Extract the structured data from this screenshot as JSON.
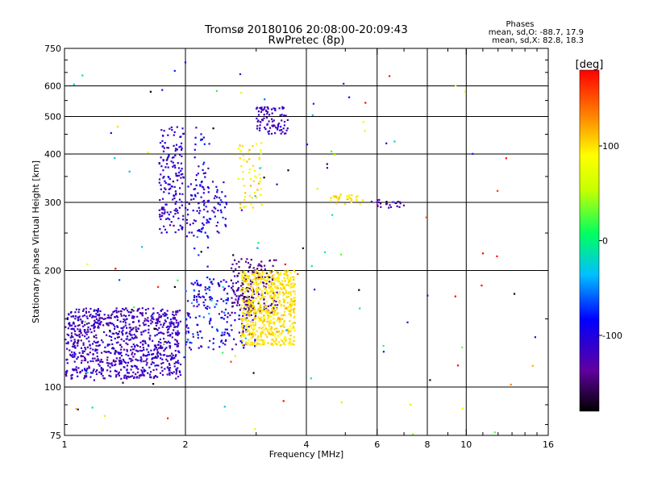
{
  "chart_data": {
    "type": "scatter",
    "title": "Tromsø 20180106 20:08:00-20:09:43",
    "subtitle": "RwPretec (8p)",
    "xlabel": "Frequency [MHz]",
    "ylabel": "Stationary phase Virtual Height [km]",
    "x_scale": "log",
    "y_scale": "log",
    "xlim": [
      1,
      16
    ],
    "ylim": [
      75,
      750
    ],
    "x_ticks": [
      1,
      2,
      4,
      6,
      8,
      10,
      16
    ],
    "x_tick_labels": [
      "1",
      "2",
      "4",
      "6",
      "8",
      "10",
      "16"
    ],
    "x_minor_ticks": [
      3,
      5,
      7,
      9,
      11,
      12,
      13,
      14,
      15
    ],
    "y_ticks": [
      75,
      100,
      200,
      300,
      400,
      500,
      600,
      750
    ],
    "y_tick_labels": [
      "75",
      "100",
      "200",
      "300",
      "400",
      "500",
      "600",
      "750"
    ],
    "y_minor_ticks": [
      80,
      90,
      150,
      250,
      350,
      450,
      550,
      650,
      700
    ],
    "grid": true,
    "stats": {
      "title": "Phases",
      "line_o": "mean, sd,O: -88.7, 17.9",
      "line_x": "mean, sd,X:  82.8, 18.3"
    },
    "colorbar": {
      "label": "[deg]",
      "range": [
        -180,
        180
      ],
      "ticks": [
        100,
        0,
        -100
      ],
      "tick_labels": [
        "100",
        "0",
        "-100"
      ]
    },
    "series": [
      {
        "ranges": [
          [
            1.0,
            1.95,
            105,
            160,
            -118,
            15,
            900
          ]
        ]
      },
      {
        "ranges": [
          [
            1.72,
            1.98,
            250,
            470,
            -110,
            12,
            170
          ]
        ]
      },
      {
        "ranges": [
          [
            2.0,
            2.55,
            245,
            345,
            -105,
            15,
            90
          ]
        ]
      },
      {
        "ranges": [
          [
            2.1,
            2.3,
            170,
            470,
            -95,
            20,
            60
          ]
        ]
      },
      {
        "ranges": [
          [
            2.0,
            3.0,
            125,
            190,
            -100,
            25,
            220
          ]
        ]
      },
      {
        "ranges": [
          [
            2.7,
            3.1,
            290,
            430,
            95,
            15,
            55
          ]
        ]
      },
      {
        "ranges": [
          [
            3.0,
            3.6,
            450,
            530,
            -118,
            10,
            90
          ]
        ]
      },
      {
        "ranges": [
          [
            2.6,
            3.4,
            155,
            215,
            -140,
            15,
            170
          ]
        ]
      },
      {
        "ranges": [
          [
            2.75,
            3.75,
            128,
            200,
            100,
            8,
            650
          ]
        ]
      },
      {
        "ranges": [
          [
            4.6,
            5.6,
            295,
            315,
            100,
            10,
            35
          ]
        ]
      },
      {
        "ranges": [
          [
            5.8,
            7.0,
            290,
            305,
            -130,
            15,
            25
          ]
        ]
      },
      {
        "ranges": [
          [
            1.0,
            16.0,
            75,
            700,
            0,
            130,
            120
          ]
        ]
      }
    ]
  }
}
